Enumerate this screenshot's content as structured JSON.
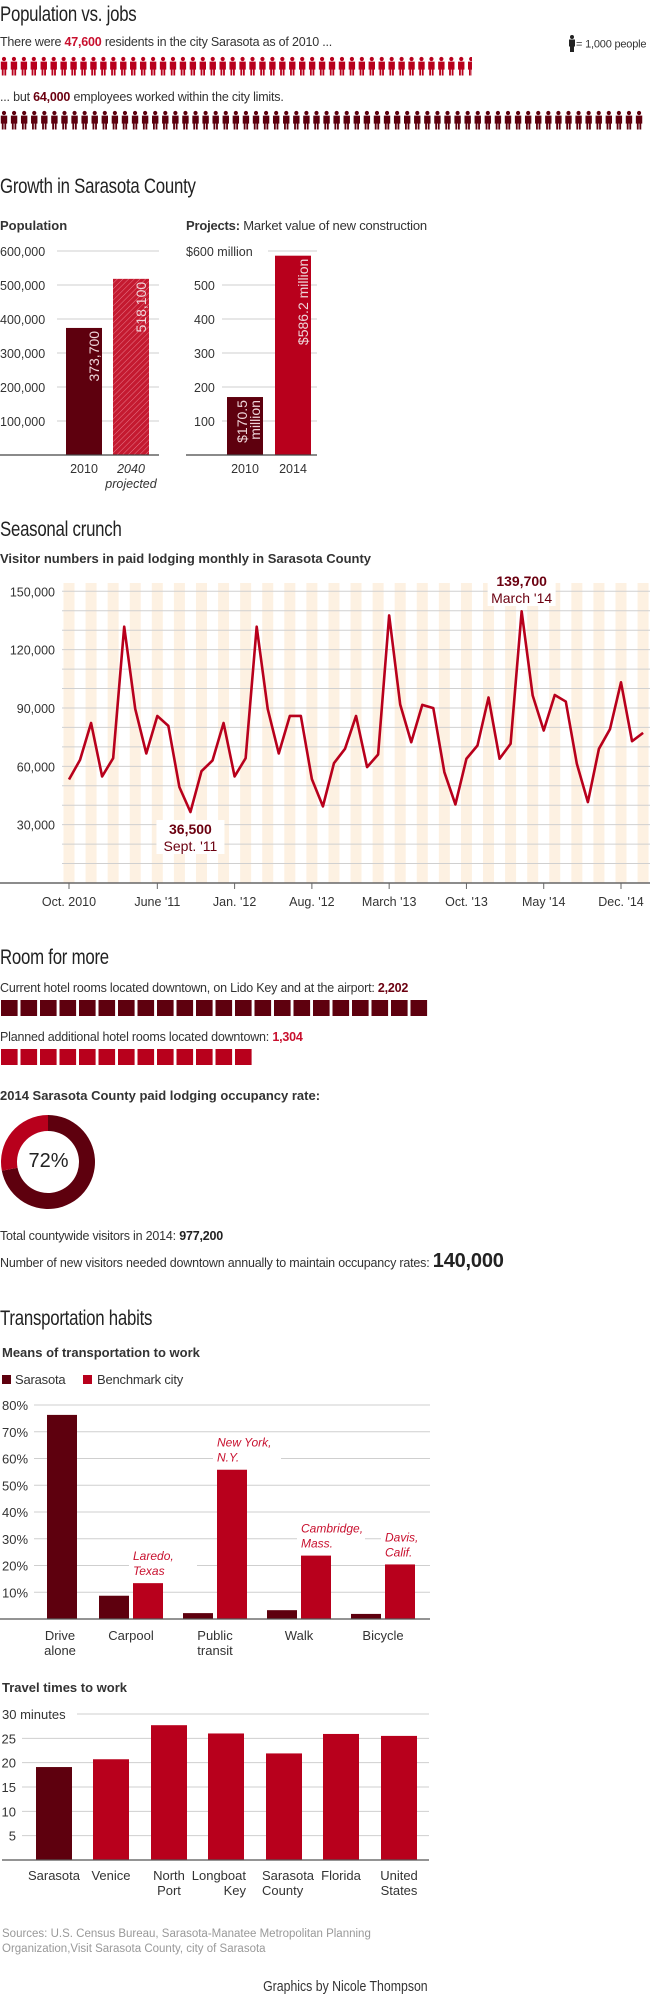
{
  "colors": {
    "dark": "#5e000e",
    "red": "#b8001c",
    "accent": "#c8102e",
    "grid": "#cfcfcf",
    "stripe": "#fdf1e2"
  },
  "population_jobs": {
    "title": "Population vs. jobs",
    "residents_pre": "There were ",
    "residents_value": "47,600",
    "residents_post": " residents in the city Sarasota as of 2010 ...",
    "residents_count": 47.6,
    "employees_pre": "... but ",
    "employees_value": "64,000",
    "employees_post": " employees worked within the city limits.",
    "employees_count": 64,
    "legend_icon": "person-icon",
    "legend_text": "= 1,000 people"
  },
  "growth": {
    "title": "Growth in Sarasota County",
    "population_title": "Population",
    "projects_title_bold": "Projects:",
    "projects_title_rest": " Market value of new construction"
  },
  "seasonal": {
    "title": "Seasonal crunch",
    "subtitle": "Visitor numbers in paid lodging monthly in Sarasota County"
  },
  "rooms": {
    "title": "Room for more",
    "current_label": "Current hotel rooms located downtown, on Lido Key and at the airport: ",
    "current_value": "2,202",
    "current_squares": 22,
    "planned_label": "Planned additional hotel rooms located downtown: ",
    "planned_value": "1,304",
    "planned_squares": 13,
    "occupancy_title": "2014 Sarasota County paid lodging occupancy rate:",
    "occupancy_value": "72%",
    "occupancy_fraction": 0.72,
    "visitors_label": "Total countywide visitors in 2014: ",
    "visitors_value": "977,200",
    "needed_label": "Number of new visitors needed downtown annually to maintain occupancy rates: ",
    "needed_value": "140,000"
  },
  "transport": {
    "title": "Transportation habits",
    "means_title": "Means of transportation to work",
    "legend": [
      "Sarasota",
      "Benchmark city"
    ],
    "travel_title": "Travel times to work"
  },
  "footer": {
    "sources_1": "Sources: U.S. Census Bureau, Sarasota-Manatee Metropolitan Planning",
    "sources_2": "Organization,Visit Sarasota County, city of Sarasota",
    "credit": "Graphics by Nicole Thompson"
  },
  "chart_data": [
    {
      "id": "population",
      "type": "bar",
      "title": "Population",
      "categories": [
        "2010",
        "2040"
      ],
      "category_sublabels": [
        "",
        "projected"
      ],
      "values": [
        373700,
        518100
      ],
      "value_labels": [
        "373,700",
        "518,100"
      ],
      "ylim": [
        0,
        600000
      ],
      "yticks": [
        "100,000",
        "200,000",
        "300,000",
        "400,000",
        "500,000",
        "600,000"
      ],
      "ytick_values": [
        100000,
        200000,
        300000,
        400000,
        500000,
        600000
      ]
    },
    {
      "id": "projects",
      "type": "bar",
      "title": "Projects: Market value of new construction",
      "categories": [
        "2010",
        "2014"
      ],
      "values": [
        170.5,
        586.2
      ],
      "value_labels": [
        "$170.5 million",
        "$586.2 million"
      ],
      "ylim": [
        0,
        600
      ],
      "yticks": [
        "100",
        "200",
        "300",
        "400",
        "500",
        "$600 million"
      ],
      "ytick_values": [
        100,
        200,
        300,
        400,
        500,
        600
      ]
    },
    {
      "id": "visitors",
      "type": "line",
      "title": "Visitor numbers in paid lodging monthly in Sarasota County",
      "ylim": [
        0,
        150000
      ],
      "yticks": [
        "30,000",
        "60,000",
        "90,000",
        "120,000",
        "150,000"
      ],
      "ytick_values": [
        30000,
        60000,
        90000,
        120000,
        150000
      ],
      "xtick_labels": [
        "Oct. 2010",
        "June '11",
        "Jan. '12",
        "Aug. '12",
        "March '13",
        "Oct. '13",
        "May '14",
        "Dec. '14"
      ],
      "xtick_index": [
        0,
        8,
        15,
        22,
        29,
        36,
        43,
        50
      ],
      "values": [
        53200,
        63300,
        82300,
        54800,
        64200,
        131800,
        89500,
        66600,
        85900,
        80800,
        49300,
        36500,
        57500,
        63000,
        82300,
        54800,
        64200,
        131800,
        89500,
        66600,
        85900,
        85900,
        53400,
        39400,
        61600,
        69000,
        85900,
        59600,
        66100,
        137600,
        91800,
        72400,
        91600,
        89900,
        57000,
        40400,
        63900,
        70700,
        95400,
        63900,
        71600,
        139700,
        96400,
        78400,
        96700,
        93300,
        61300,
        41600,
        69000,
        79100,
        103200,
        72900,
        77200
      ],
      "annotations": [
        {
          "index": 41,
          "value": "139,700",
          "label": "March '14"
        },
        {
          "index": 11,
          "value": "36,500",
          "label": "Sept. '11"
        }
      ]
    },
    {
      "id": "transport",
      "type": "bar",
      "title": "Means of transportation to work",
      "categories": [
        [
          "Drive",
          "alone"
        ],
        [
          "Carpool",
          ""
        ],
        [
          "Public",
          "transit"
        ],
        [
          "Walk",
          ""
        ],
        [
          "Bicycle",
          ""
        ]
      ],
      "ylim": [
        0,
        80
      ],
      "yticks": [
        "10%",
        "20%",
        "30%",
        "40%",
        "50%",
        "60%",
        "70%",
        "80%"
      ],
      "ytick_values": [
        10,
        20,
        30,
        40,
        50,
        60,
        70,
        80
      ],
      "series": [
        {
          "name": "Sarasota",
          "values": [
            76.3,
            8.7,
            2.2,
            3.3,
            1.9
          ]
        },
        {
          "name": "Benchmark city",
          "values": [
            null,
            13.4,
            55.8,
            23.7,
            20.4
          ]
        }
      ],
      "benchmark_labels": [
        null,
        [
          "Laredo,",
          "Texas"
        ],
        [
          "New York,",
          "N.Y."
        ],
        [
          "Cambridge,",
          "Mass."
        ],
        [
          "Davis,",
          "Calif."
        ]
      ]
    },
    {
      "id": "travel",
      "type": "bar",
      "title": "Travel times to work",
      "categories": [
        [
          "Sarasota",
          ""
        ],
        [
          "Venice",
          ""
        ],
        [
          "North",
          "Port"
        ],
        [
          "Longboat",
          "Key"
        ],
        [
          "Sarasota",
          "County"
        ],
        [
          "Florida",
          ""
        ],
        [
          "United",
          "States"
        ]
      ],
      "values": [
        19.1,
        20.7,
        27.7,
        26.0,
        21.9,
        25.9,
        25.5
      ],
      "ylim": [
        0,
        30
      ],
      "yticks": [
        "5",
        "10",
        "15",
        "20",
        "25",
        "30 minutes"
      ],
      "ytick_values": [
        5,
        10,
        15,
        20,
        25,
        30
      ]
    }
  ]
}
